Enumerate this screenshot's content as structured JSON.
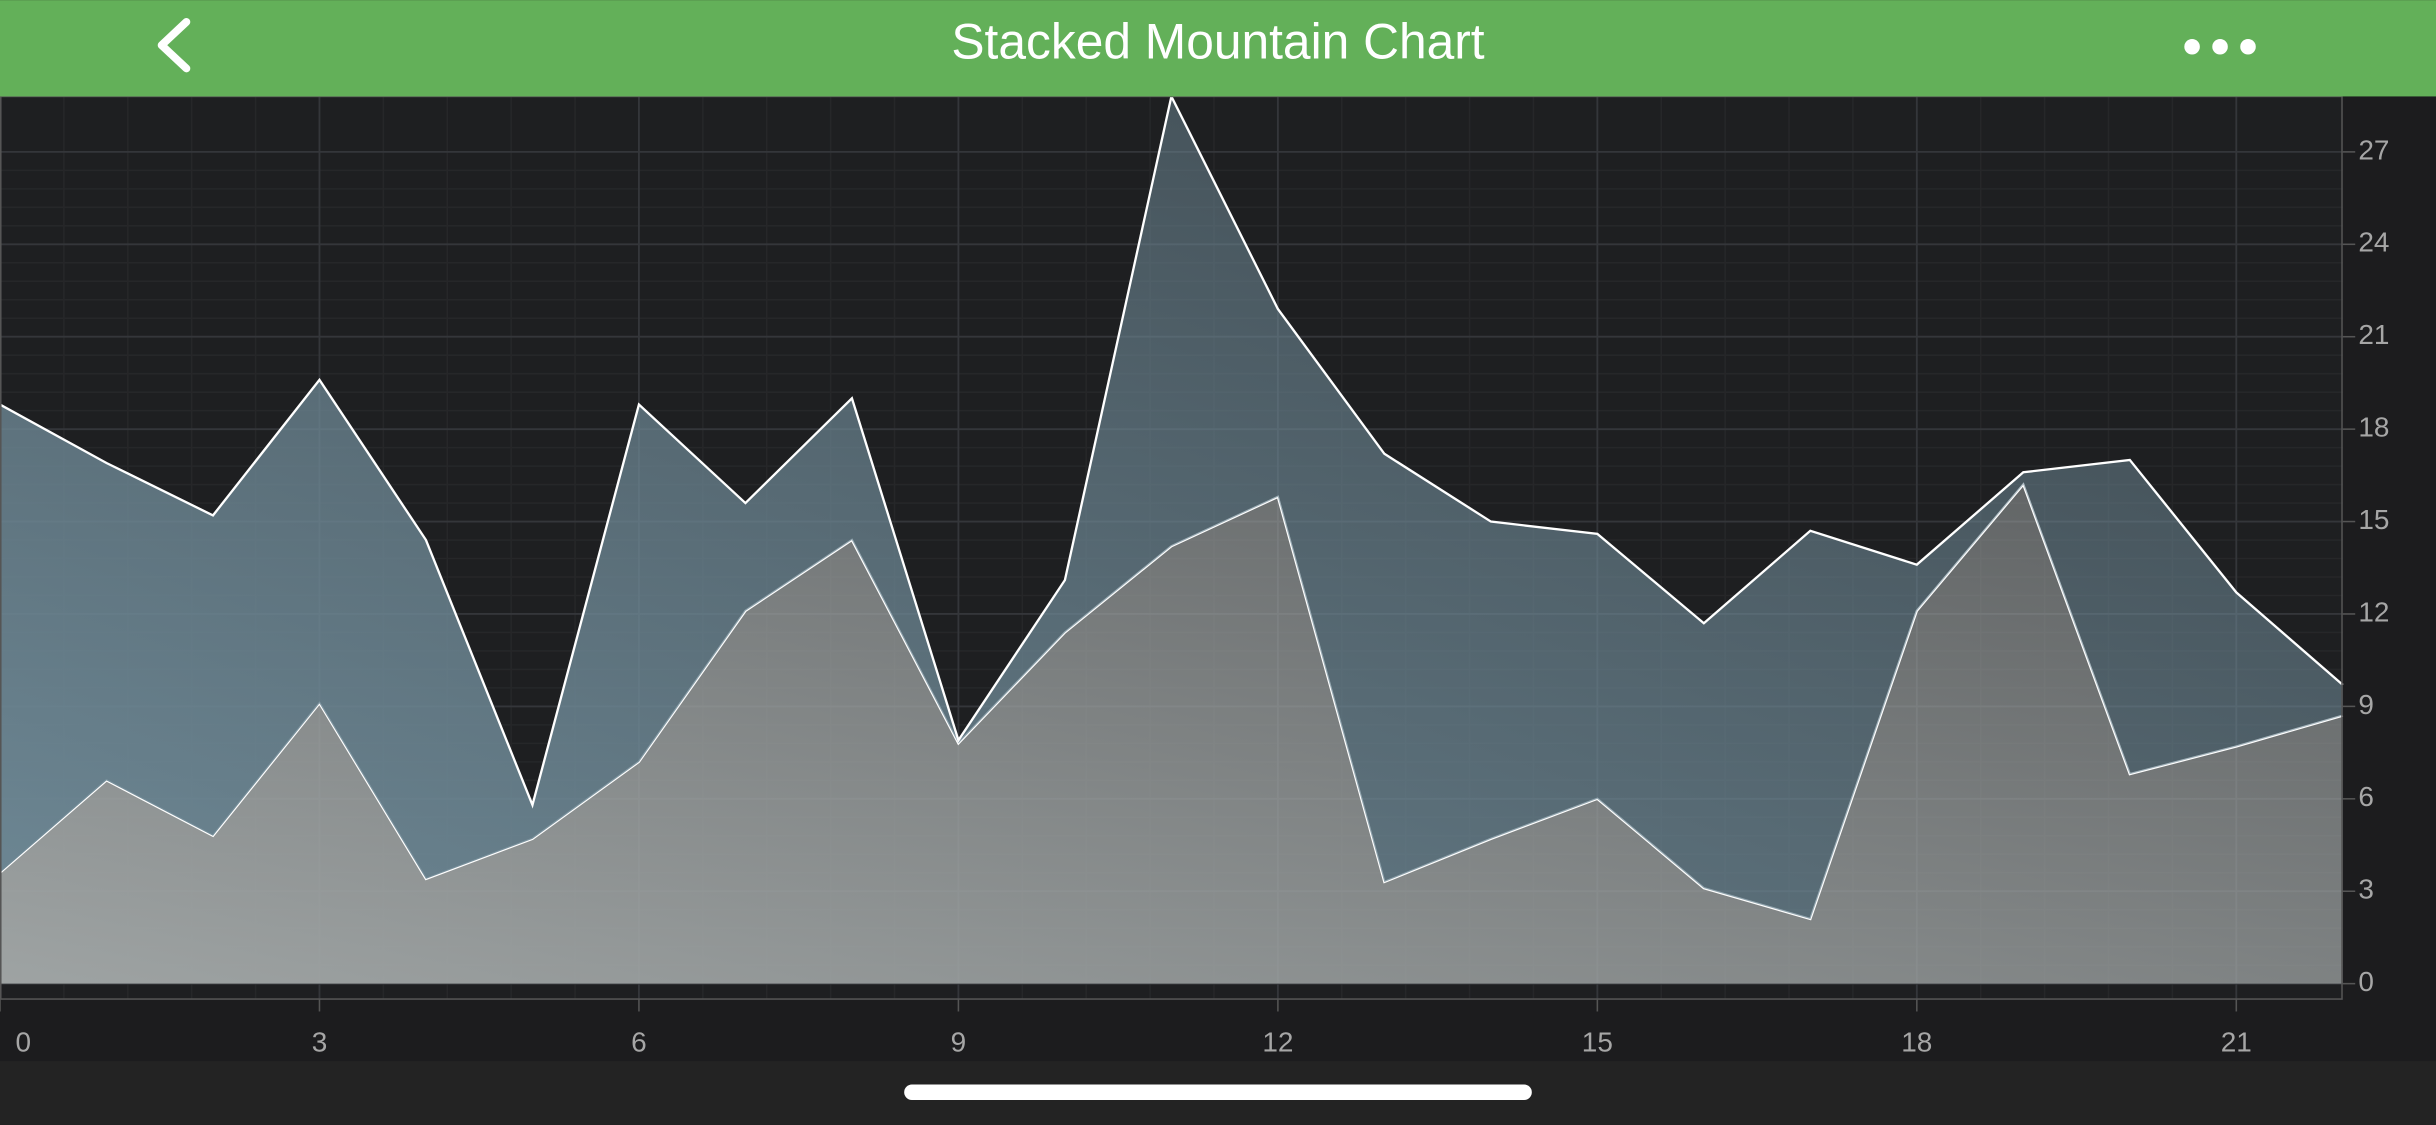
{
  "chart_data": {
    "type": "stacked_area",
    "title": "Stacked Mountain Chart",
    "x": [
      0,
      1,
      2,
      3,
      4,
      5,
      6,
      7,
      8,
      9,
      10,
      11,
      12,
      13,
      14,
      15,
      16,
      17,
      18,
      19,
      20,
      21,
      22
    ],
    "series": [
      {
        "color": "#9ea3a3",
        "values": [
          3.6,
          6.6,
          4.8,
          9.1,
          3.4,
          4.7,
          7.2,
          12.1,
          14.4,
          7.8,
          11.4,
          14.2,
          15.8,
          3.3,
          4.7,
          6.0,
          3.1,
          2.1,
          12.1,
          16.2,
          6.8,
          7.7,
          8.7
        ]
      },
      {
        "color": "#6d8794",
        "values": [
          15.2,
          10.3,
          10.4,
          10.5,
          11.0,
          1.1,
          11.6,
          3.5,
          4.6,
          0.1,
          1.7,
          14.6,
          6.1,
          13.9,
          10.3,
          8.6,
          8.6,
          12.6,
          1.5,
          0.4,
          10.2,
          5.0,
          1.0
        ]
      }
    ],
    "xlim": [
      0,
      22
    ],
    "xticks": [
      0,
      3,
      6,
      9,
      12,
      15,
      18,
      21
    ],
    "ylim": [
      -0.5,
      28.8
    ],
    "yticks": [
      0,
      3,
      6,
      9,
      12,
      15,
      18,
      21,
      24,
      27
    ],
    "grid": true,
    "y_axis_side": "right"
  }
}
